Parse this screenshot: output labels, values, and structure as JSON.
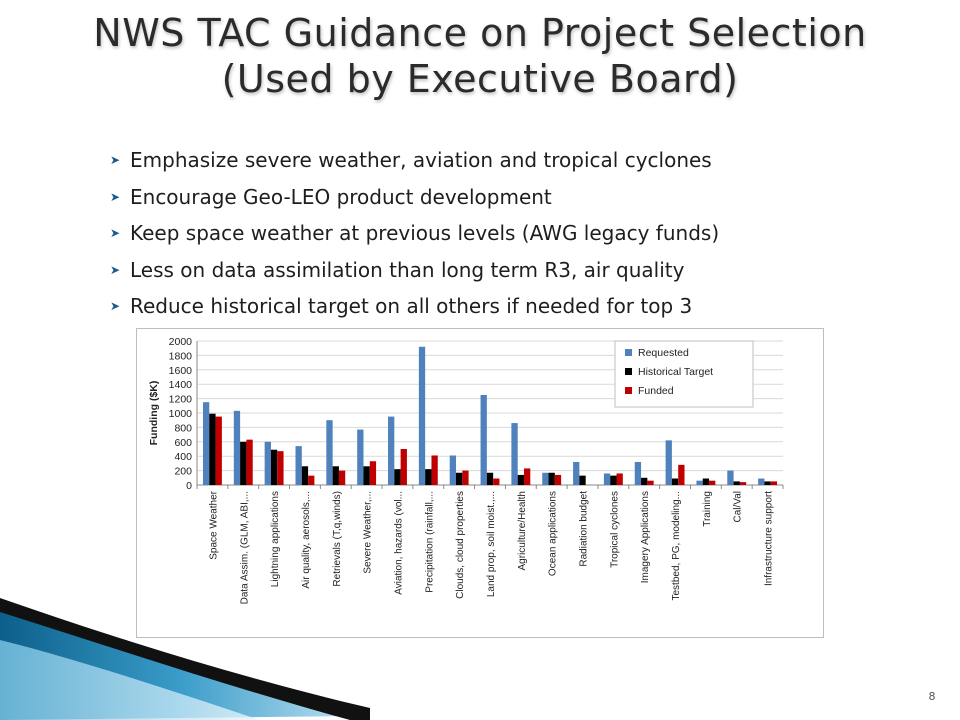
{
  "slide": {
    "title_line1": "NWS TAC Guidance on Project Selection",
    "title_line2": "(Used by Executive Board)",
    "bullets": [
      "Emphasize severe weather, aviation and tropical cyclones",
      "Encourage Geo-LEO product development",
      "Keep space weather at previous levels (AWG legacy funds)",
      "Less on data assimilation than long term R3, air quality",
      "Reduce historical target on all others if needed for top 3"
    ],
    "bullet_icon": "arrow-bullet-icon",
    "page_number": "8"
  },
  "chart_data": {
    "type": "bar",
    "title": "",
    "xlabel": "",
    "ylabel": "Funding ($K)",
    "ylim": [
      0,
      2000
    ],
    "yticks": [
      0,
      200,
      400,
      600,
      800,
      1000,
      1200,
      1400,
      1600,
      1800,
      2000
    ],
    "grid": true,
    "legend_position": "top-right",
    "categories": [
      "Space Weather",
      "Data Assim. (GLM, ABI,...",
      "Lightning applications",
      "Air quality, aerosols,...",
      "Retrievals (T,q,winds)",
      "Severe Weather,...",
      "Aviation, hazards (vol...",
      "Precipitation (rainfall,...",
      "Clouds, cloud properties",
      "Land prop, soil moist.,...",
      "Agriculture/Health",
      "Ocean applications",
      "Radiation budget",
      "Tropical cyclones",
      "Imagery Applications",
      "Testbed, PG, modeling...",
      "Training",
      "Cal/Val",
      "Infrastructure support"
    ],
    "series": [
      {
        "name": "Requested",
        "color": "#4f81bd",
        "values": [
          1150,
          1030,
          600,
          540,
          900,
          770,
          950,
          1920,
          410,
          1250,
          860,
          170,
          320,
          160,
          320,
          620,
          60,
          200,
          90
        ]
      },
      {
        "name": "Historical Target",
        "color": "#000000",
        "values": [
          990,
          600,
          490,
          260,
          260,
          260,
          220,
          220,
          170,
          170,
          140,
          170,
          130,
          130,
          100,
          90,
          90,
          50,
          50
        ]
      },
      {
        "name": "Funded",
        "color": "#c00000",
        "values": [
          950,
          630,
          470,
          130,
          200,
          330,
          500,
          410,
          200,
          90,
          230,
          140,
          0,
          160,
          60,
          280,
          60,
          40,
          50
        ]
      }
    ]
  }
}
